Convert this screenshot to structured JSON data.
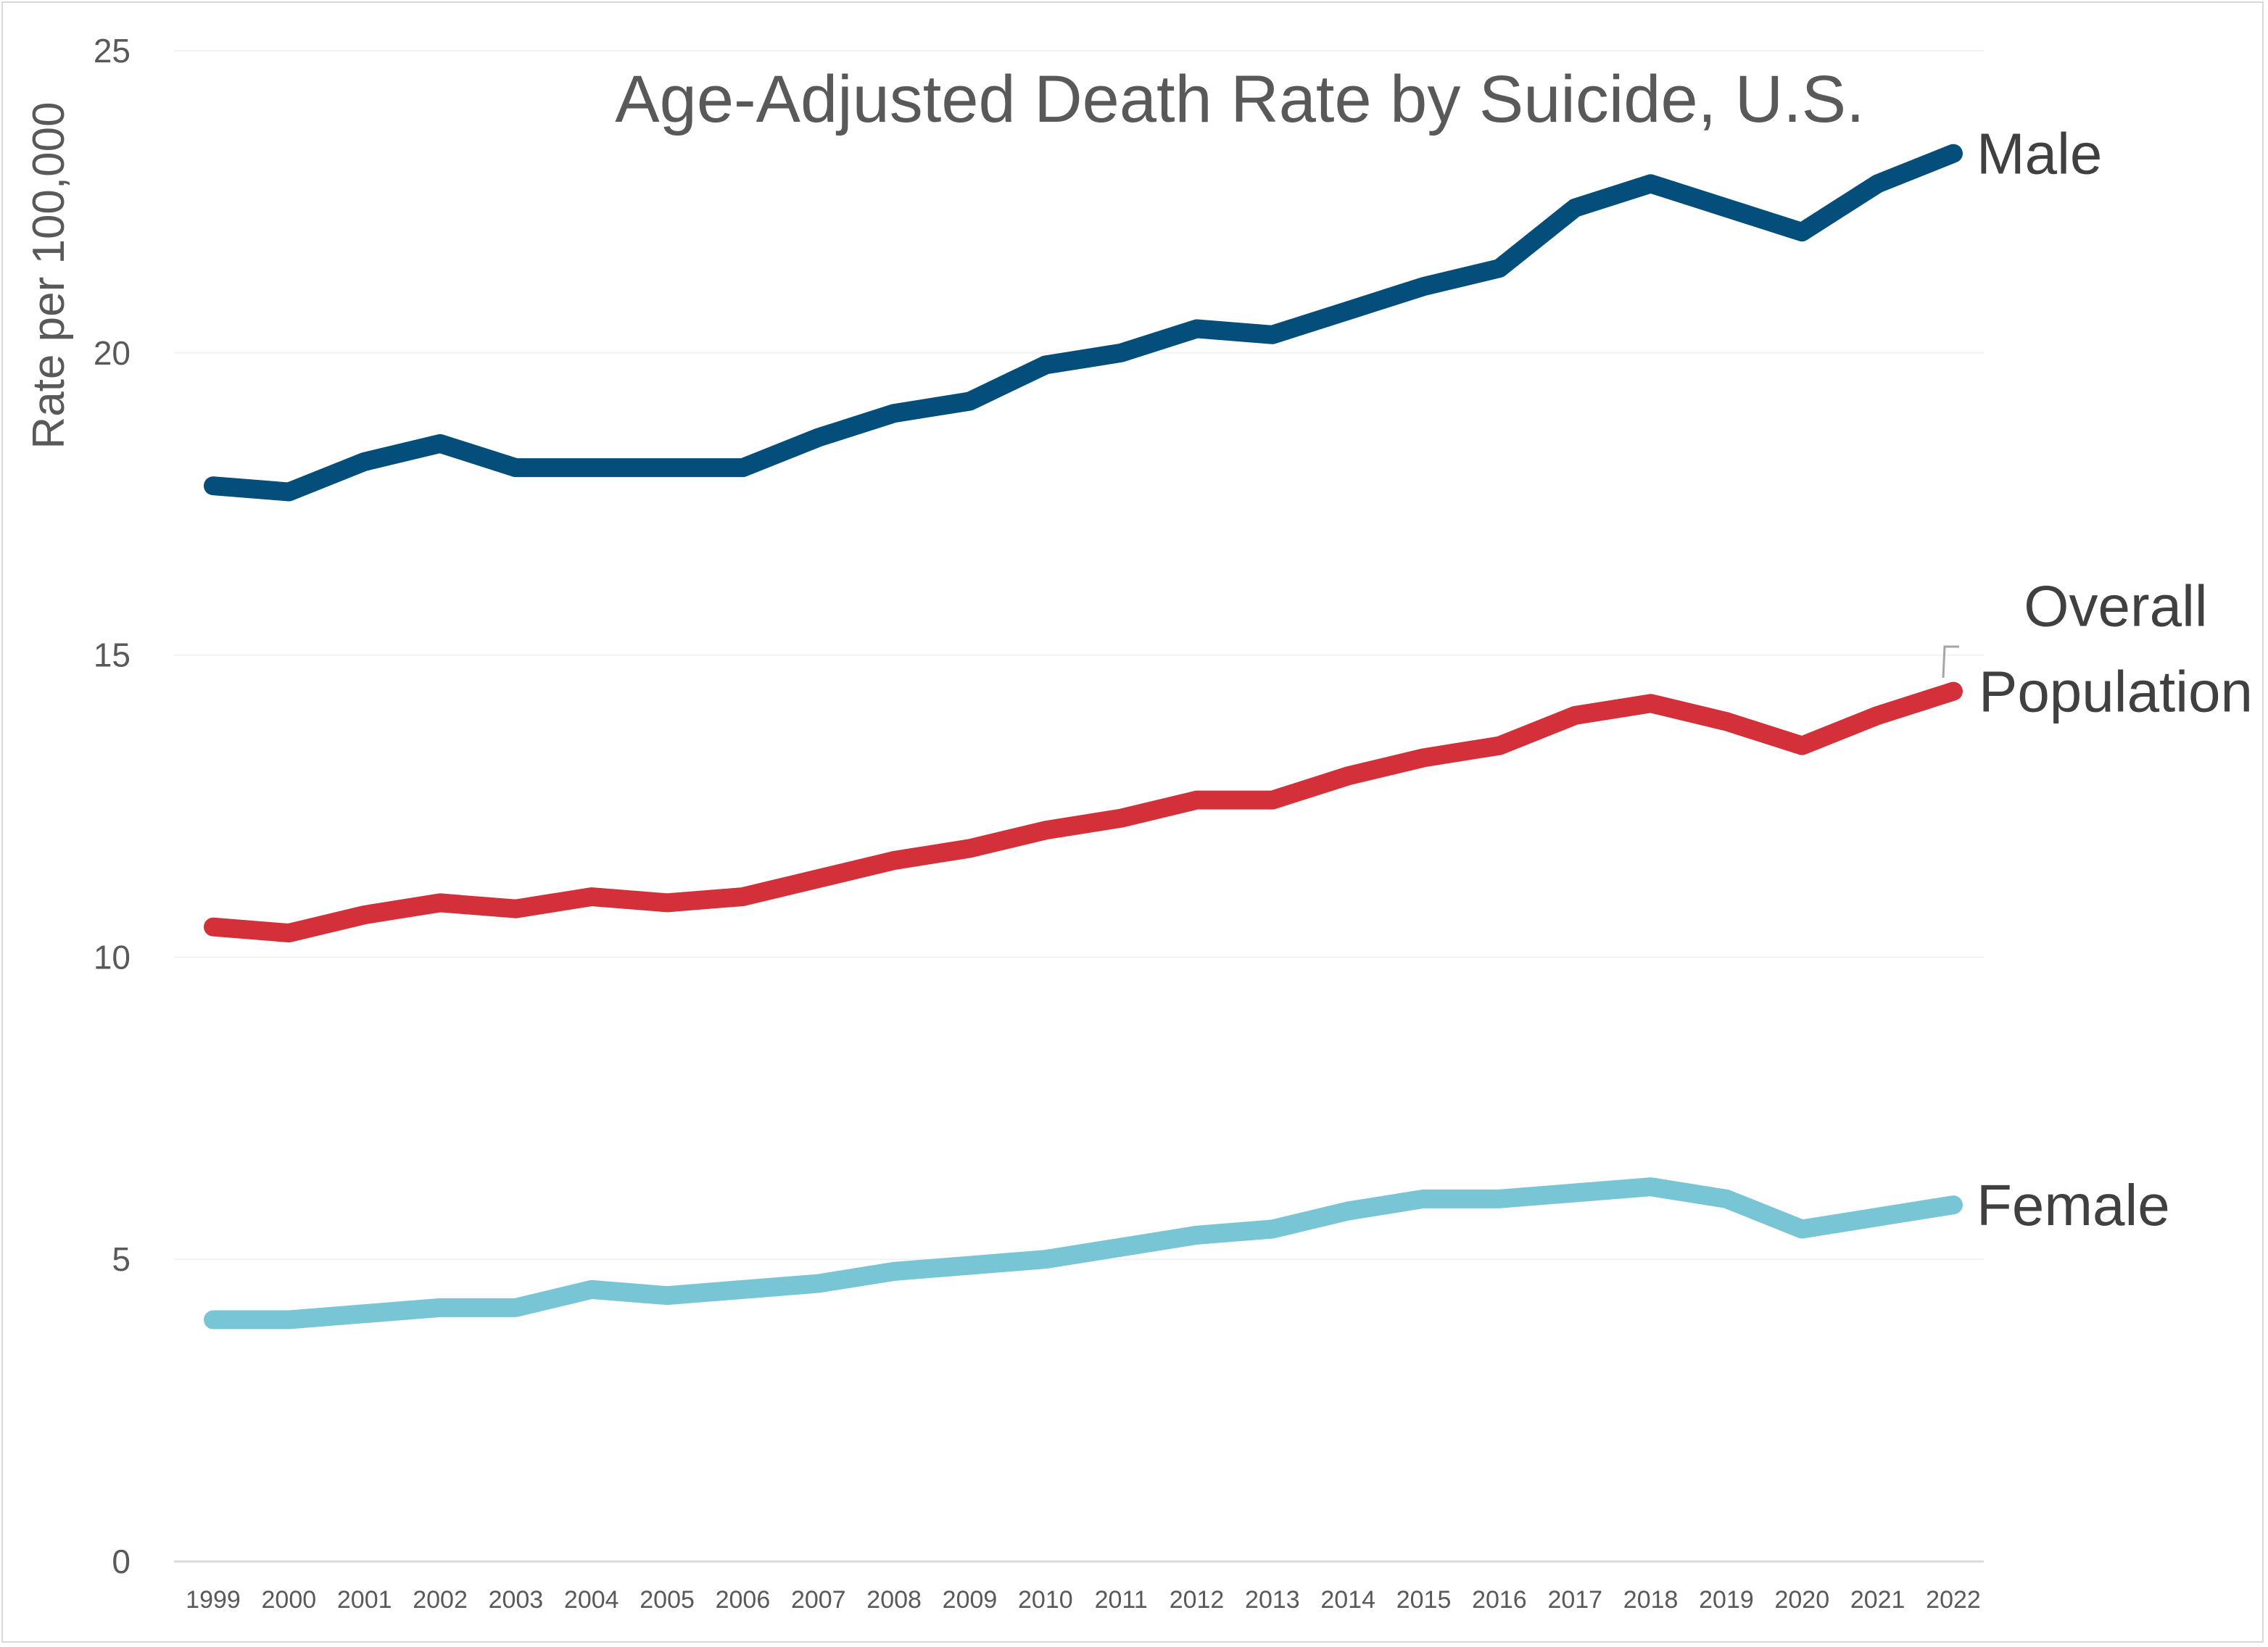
{
  "chart_data": {
    "type": "line",
    "title": "Age-Adjusted Death Rate by Suicide, U.S.",
    "xlabel": "",
    "ylabel": "Rate per 100,000",
    "ylim": [
      0,
      25
    ],
    "yticks": [
      0,
      5,
      10,
      15,
      20,
      25
    ],
    "grid": true,
    "legend": "direct labels at line ends",
    "x": [
      "1999",
      "2000",
      "2001",
      "2002",
      "2003",
      "2004",
      "2005",
      "2006",
      "2007",
      "2008",
      "2009",
      "2010",
      "2011",
      "2012",
      "2013",
      "2014",
      "2015",
      "2016",
      "2017",
      "2018",
      "2019",
      "2020",
      "2021",
      "2022"
    ],
    "series": [
      {
        "name": "Male",
        "label_lines": [
          "Male"
        ],
        "color": "#034e7b",
        "values": [
          17.8,
          17.7,
          18.2,
          18.5,
          18.1,
          18.1,
          18.1,
          18.1,
          18.6,
          19.0,
          19.2,
          19.8,
          20.0,
          20.4,
          20.3,
          20.7,
          21.1,
          21.4,
          22.4,
          22.8,
          22.4,
          22.0,
          22.8,
          23.3
        ]
      },
      {
        "name": "Overall Population",
        "label_lines": [
          "Overall",
          "Population"
        ],
        "color": "#d43039",
        "values": [
          10.5,
          10.4,
          10.7,
          10.9,
          10.8,
          11.0,
          10.9,
          11.0,
          11.3,
          11.6,
          11.8,
          12.1,
          12.3,
          12.6,
          12.6,
          13.0,
          13.3,
          13.5,
          14.0,
          14.2,
          13.9,
          13.5,
          14.0,
          14.4
        ]
      },
      {
        "name": "Female",
        "label_lines": [
          "Female"
        ],
        "color": "#78c5d6",
        "values": [
          4.0,
          4.0,
          4.1,
          4.2,
          4.2,
          4.5,
          4.4,
          4.5,
          4.6,
          4.8,
          4.9,
          5.0,
          5.2,
          5.4,
          5.5,
          5.8,
          6.0,
          6.0,
          6.1,
          6.2,
          6.0,
          5.5,
          5.7,
          5.9
        ]
      }
    ]
  }
}
